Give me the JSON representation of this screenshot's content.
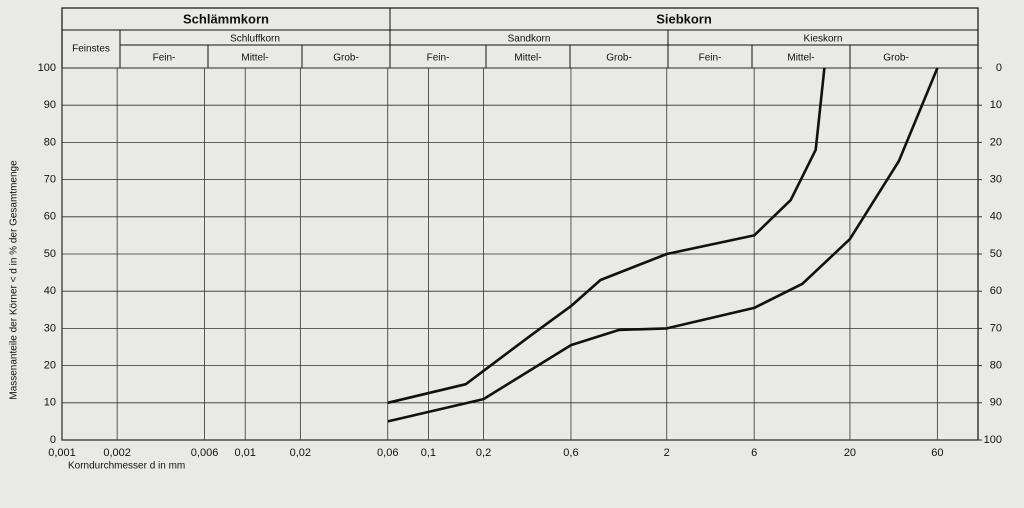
{
  "chart_data": {
    "type": "line",
    "header": {
      "main": [
        "Schlämmkorn",
        "Siebkorn"
      ],
      "groups": [
        "Feinstes",
        "Schluffkorn",
        "Sandkorn",
        "Kieskorn"
      ],
      "sub": [
        "Fein-",
        "Mittel-",
        "Grob-",
        "Fein-",
        "Mittel-",
        "Grob-",
        "Fein-",
        "Mittel-",
        "Grob-"
      ]
    },
    "y_label": "Massenanteile der Körner < d in % der Gesamtmenge",
    "x_label": "Korndurchmesser d in mm",
    "xscale": "log",
    "xlim": [
      0.001,
      100
    ],
    "xticks": [
      {
        "value": 0.001,
        "label": "0,001"
      },
      {
        "value": 0.002,
        "label": "0,002"
      },
      {
        "value": 0.006,
        "label": "0,006"
      },
      {
        "value": 0.01,
        "label": "0,01"
      },
      {
        "value": 0.02,
        "label": "0,02"
      },
      {
        "value": 0.06,
        "label": "0,06"
      },
      {
        "value": 0.1,
        "label": "0,1"
      },
      {
        "value": 0.2,
        "label": "0,2"
      },
      {
        "value": 0.6,
        "label": "0,6"
      },
      2,
      6,
      20,
      60
    ],
    "ylim": [
      0,
      100
    ],
    "yticks": [
      0,
      10,
      20,
      30,
      40,
      50,
      60,
      70,
      80,
      90,
      100
    ],
    "y2lim": [
      100,
      0
    ],
    "y2ticks": [
      0,
      10,
      20,
      30,
      40,
      50,
      60,
      70,
      80,
      90,
      100
    ],
    "grid": true,
    "series": [
      {
        "color": "#111111",
        "x": [
          0.06,
          0.16,
          0.36,
          0.6,
          0.87,
          2,
          6,
          9.5,
          13,
          14.5
        ],
        "values": [
          10,
          15,
          28,
          36,
          43,
          50,
          55,
          64.5,
          78,
          100
        ]
      },
      {
        "color": "#111111",
        "x": [
          0.06,
          0.2,
          0.6,
          1.1,
          2,
          6,
          11,
          20,
          37,
          60
        ],
        "values": [
          5,
          11,
          25.5,
          29.6,
          30,
          35.5,
          42,
          54,
          75,
          100
        ]
      }
    ]
  }
}
